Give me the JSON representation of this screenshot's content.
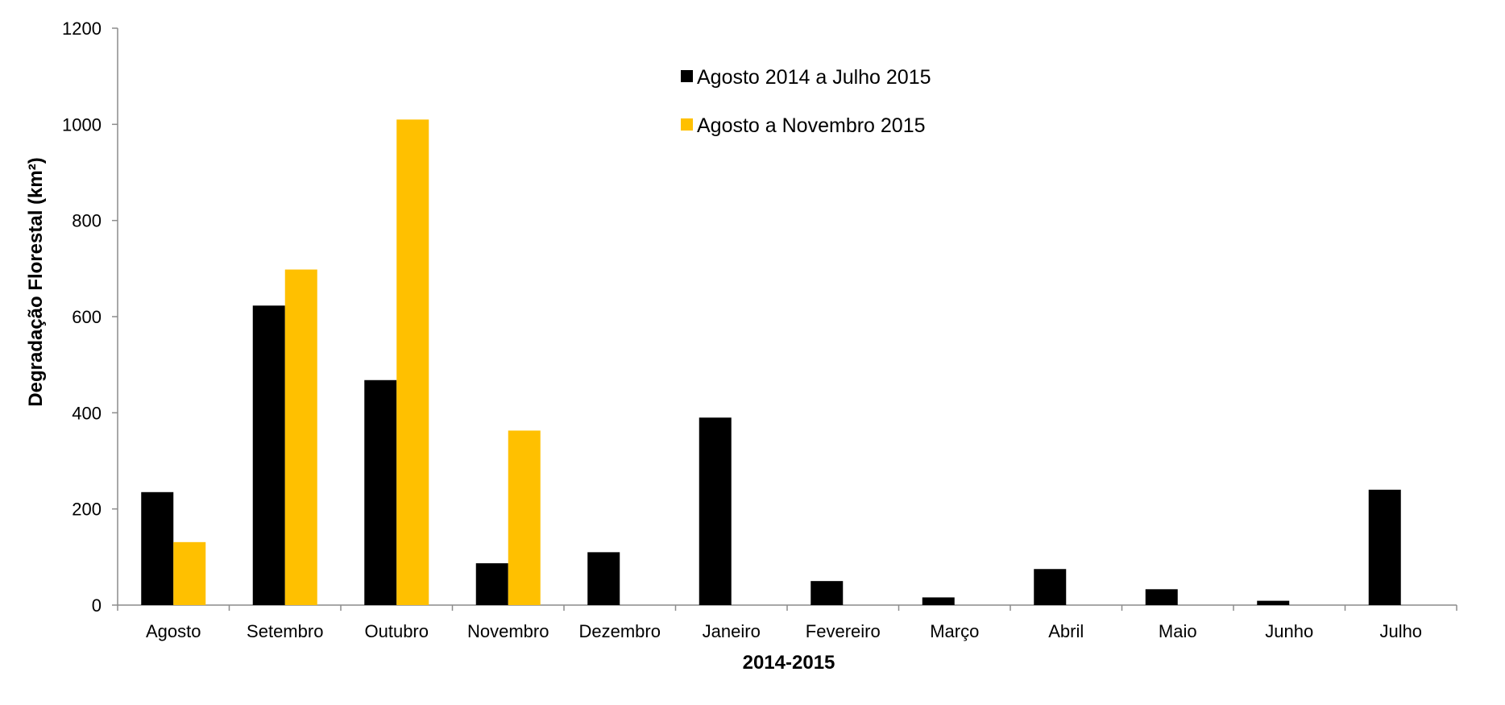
{
  "chart_data": {
    "type": "bar",
    "title": "",
    "xlabel": "2014-2015",
    "ylabel": "Degradação Florestal (km²)",
    "ylim": [
      0,
      1200
    ],
    "yticks": [
      0,
      200,
      400,
      600,
      800,
      1000,
      1200
    ],
    "grid": false,
    "legend_position": "top-center",
    "categories": [
      "Agosto",
      "Setembro",
      "Outubro",
      "Novembro",
      "Dezembro",
      "Janeiro",
      "Fevereiro",
      "Março",
      "Abril",
      "Maio",
      "Junho",
      "Julho"
    ],
    "series": [
      {
        "name": "Agosto 2014 a Julho 2015",
        "color": "#000000",
        "values": [
          235,
          623,
          468,
          87,
          110,
          390,
          50,
          16,
          75,
          33,
          9,
          240
        ]
      },
      {
        "name": "Agosto a Novembro 2015",
        "color": "#FFC000",
        "values": [
          131,
          698,
          1010,
          363,
          null,
          null,
          null,
          null,
          null,
          null,
          null,
          null
        ]
      }
    ]
  }
}
